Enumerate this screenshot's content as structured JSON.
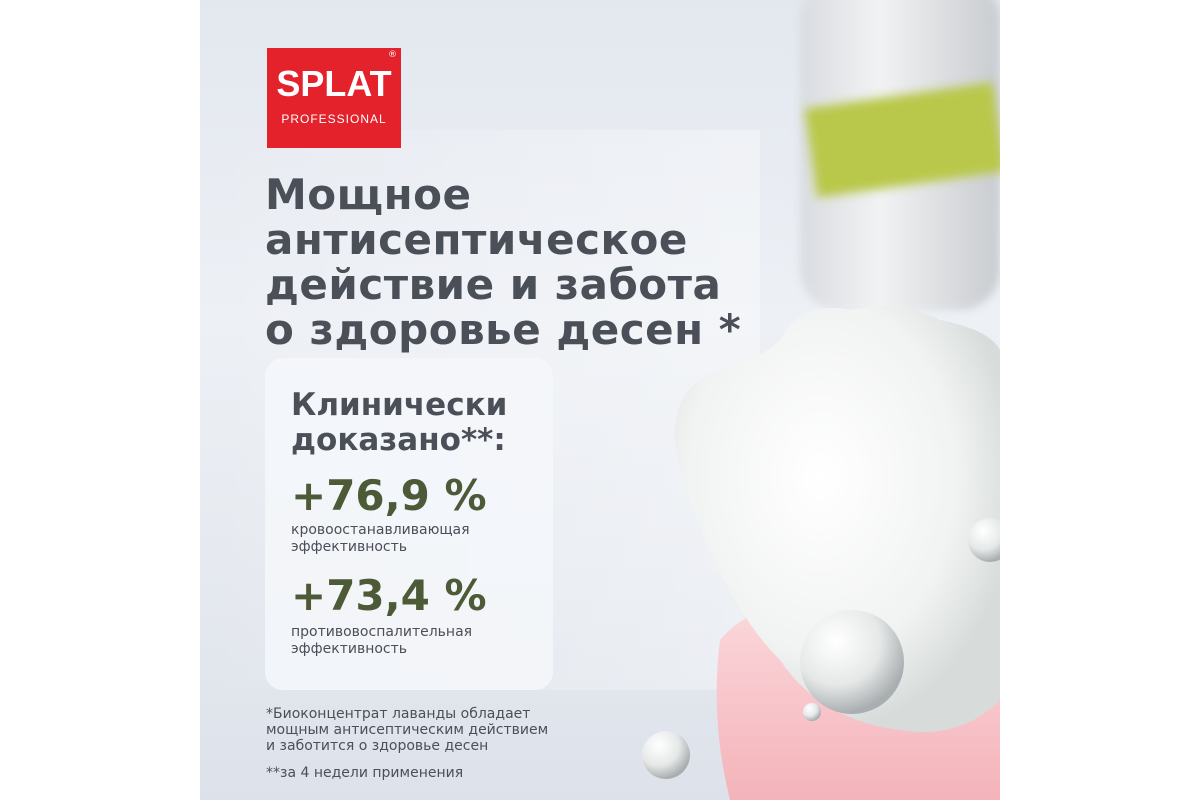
{
  "logo": {
    "brand": "SPLAT",
    "sub": "PROFESSIONAL",
    "reg": "®",
    "color": "#e4222b"
  },
  "headline": [
    "Мощное",
    "антисептическое",
    "действие и забота",
    "о здоровье десен *"
  ],
  "card": {
    "title": [
      "Клинически",
      "доказано**:"
    ],
    "stats": [
      {
        "value": "+76,9 %",
        "label": [
          "кровоостанавливающая",
          "эффективность"
        ]
      },
      {
        "value": "+73,4 %",
        "label": [
          "противовоспалительная",
          "эффективность"
        ]
      }
    ]
  },
  "footnotes": [
    [
      "*Биоконцентрат лаванды обладает",
      "мощным антисептическим действием",
      "и заботится о здоровье десен"
    ],
    [
      "**за 4 недели применения"
    ]
  ],
  "colors": {
    "heading": "#4a4f58",
    "stat": "#4d5a38",
    "accent": "#e4222b"
  }
}
